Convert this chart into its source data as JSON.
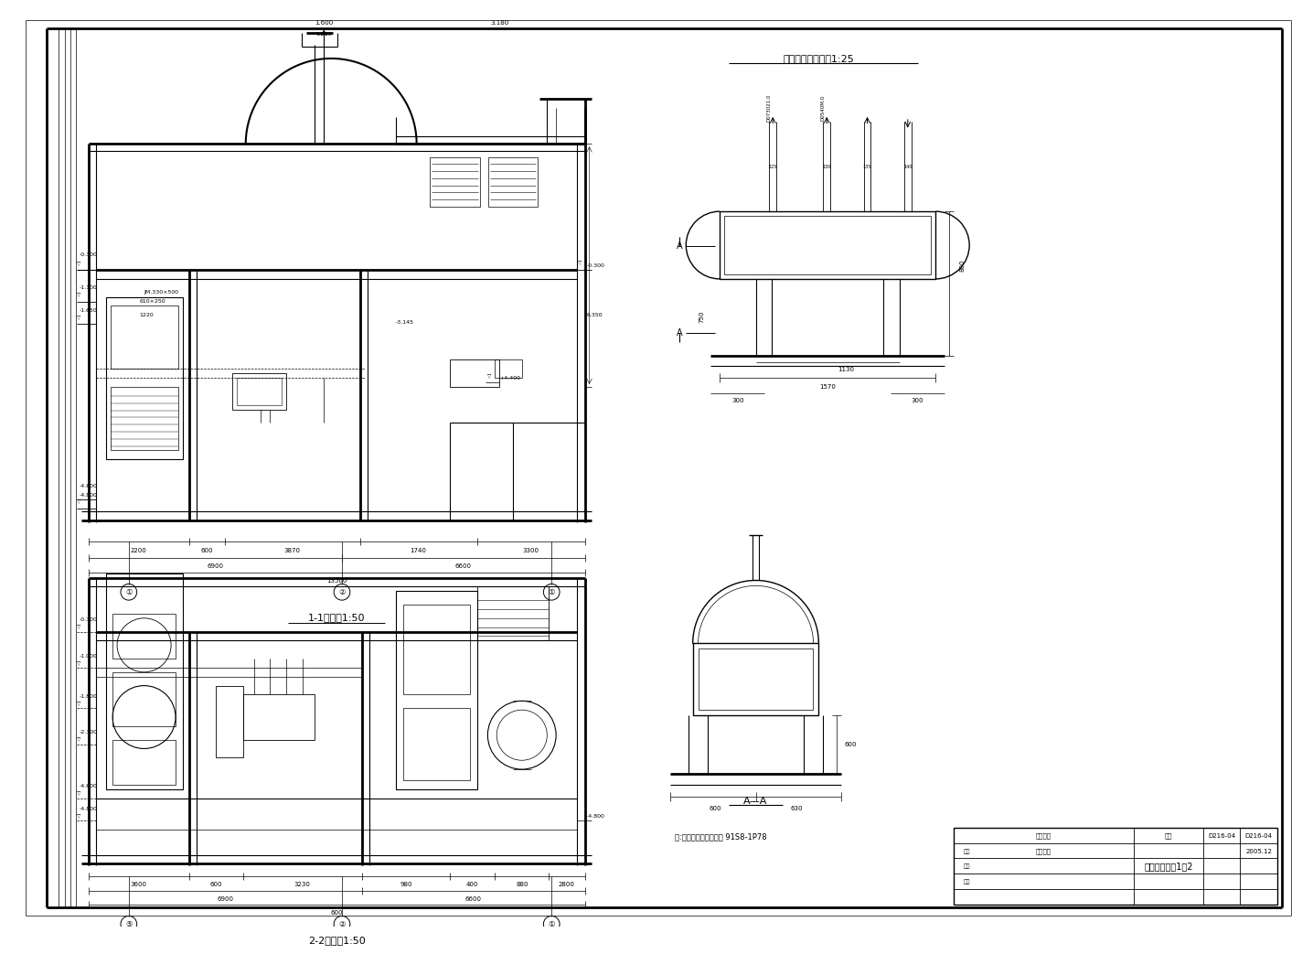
{
  "background_color": "#ffffff",
  "line_color": "#000000",
  "label_1_1": "1-1剔面图1:50",
  "label_2_2": "2-2剔面图1:50",
  "label_detail": "分集水器安装详图1:25",
  "label_aa": "A—A",
  "label_note": "注:分、集水器参见图集 91S8-1P78",
  "title_block_text": "锅炉房剔面图1－2",
  "tb_label1": "工程名称",
  "tb_label2": "建设单位",
  "tb_label3": "图号",
  "tb_label4": "D216-04",
  "tb_label5": "整理",
  "tb_label6": "校对",
  "tb_label7": "审核",
  "tb_date": "2005.12"
}
